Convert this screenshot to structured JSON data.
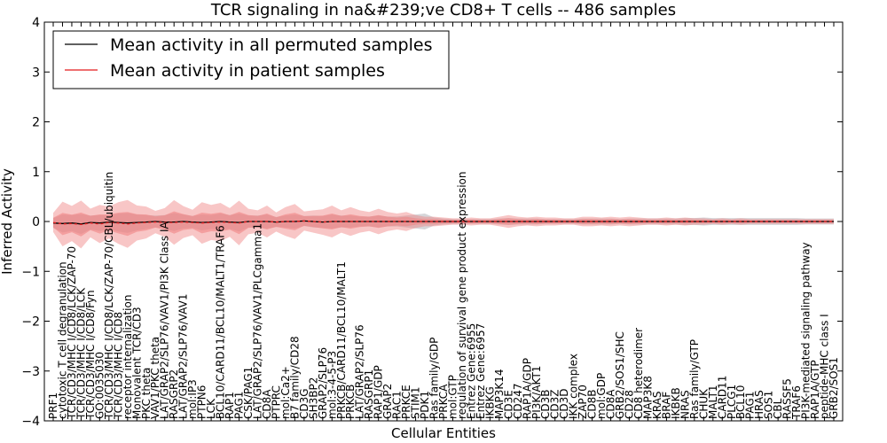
{
  "chart_data": {
    "type": "line",
    "title": "TCR signaling in na&#239;ve CD8+ T cells -- 486 samples",
    "xlabel": "Cellular Entities",
    "ylabel": "Inferred Activity",
    "ylim": [
      -4,
      4
    ],
    "yticks": [
      "4",
      "3",
      "2",
      "1",
      "0",
      "−1",
      "−2",
      "−3",
      "−4"
    ],
    "legend": {
      "placement": "top-left",
      "entries": [
        {
          "label": "Mean activity in all permuted samples",
          "color": "#000000"
        },
        {
          "label": "Mean activity in patient samples",
          "color": "#e41a1c"
        }
      ]
    },
    "colors": {
      "permuted_line": "#000000",
      "patient_line": "#e41a1c",
      "patient_band": "#f08080",
      "permuted_band": "#c8c8cc"
    },
    "categories": [
      "PRF1",
      "cytotoxic T cell degranulation",
      "TCR/CD3/MHC I/CD8/LCK/ZAP-70",
      "TCR/CD3/MHC I/CD8/LCK",
      "TCR/CD3/MHC I/CD8/Fyn",
      "GO:0035030",
      "TCR/CD3/MHC I/CD8/LCK/ZAP-70/CBL/ubiquitin",
      "TCR/CD3/MHC I/CD8",
      "receptor internalization",
      "Monovalent TCR/CD3",
      "PKC theta",
      "VAV1/PKC theta",
      "LAT/GRAP2/SLP76/VAV1/PI3K Class IA",
      "RASGRP2",
      "LAT/GRAP2/SLP76/VAV1",
      "mol:IP3",
      "PTPN6",
      "LCK",
      "BCL10/CARD11/BCL10/MALT1/TRAF6",
      "RAP1",
      "PAG1",
      "CSK/PAG1",
      "LAT/GRAP2/SLP76/VAV1/PLCgamma1",
      "CD8A",
      "PTPRC",
      "mol:Ca2+",
      "B7 family/CD28",
      "CD3G",
      "SH3BP2",
      "GRAP2/SLP76",
      "mol:3-4-5-P3",
      "PRKCB/CARD11/BCL10/MALT1",
      "PRKCB",
      "LAT/GRAP2/SLP76",
      "RASGRP1",
      "RAP1/GDP",
      "GRAP2",
      "RAC1",
      "PRKCE",
      "STIM1",
      "PDK1",
      "Ras family/GDP",
      "PRKCA",
      "mol:GTP",
      "regulation of survival gene product expression",
      "Entrez Gene:6955",
      "Entrez Gene:6957",
      "IKBKG",
      "MAP3K14",
      "CD3E",
      "CD247",
      "RAP1A/GDP",
      "PI3K/AKT1",
      "CD3B",
      "CD3Z",
      "CD3D",
      "IKK complex",
      "ZAP70",
      "CD8B",
      "mol:GDP",
      "CD8A",
      "GRB2/SOS1/SHC",
      "CD28",
      "CD8 heterodimer",
      "MAP3K8",
      "KRAS",
      "BRAF",
      "IKBKB",
      "NRAS",
      "Ras family/GTP",
      "CHUK",
      "MALT1",
      "CARD11",
      "PLCG1",
      "BCL10",
      "PAG1",
      "HRAS",
      "SOS1",
      "CBL",
      "RASSF5",
      "TRAF6",
      "PI3K-mediated signaling pathway",
      "RAP1A/GTP",
      "peptide-MHC class I",
      "GRB2/SOS1"
    ],
    "series": [
      {
        "name": "Mean activity in all permuted samples",
        "values": [
          -0.03,
          -0.04,
          -0.03,
          -0.05,
          -0.02,
          -0.03,
          -0.01,
          -0.02,
          -0.03,
          -0.02,
          -0.01,
          0.0,
          -0.01,
          -0.01,
          0.0,
          -0.01,
          -0.02,
          -0.01,
          0.0,
          -0.01,
          -0.02,
          0.0,
          0.0,
          0.0,
          -0.01,
          0.0,
          0.0,
          0.01,
          0.0,
          -0.01,
          0.0,
          0.0,
          0.0,
          0.0,
          0.0,
          0.0,
          0.0,
          0.0,
          0.0,
          0.0,
          0.0,
          0.0,
          0.0,
          0.0,
          0.0,
          0.0,
          0.0,
          0.0,
          0.0,
          0.0,
          0.0,
          0.0,
          0.0,
          0.0,
          0.0,
          0.0,
          0.0,
          0.0,
          0.0,
          0.0,
          0.0,
          0.0,
          0.0,
          0.0,
          0.0,
          0.0,
          0.0,
          0.0,
          0.0,
          0.0,
          0.0,
          0.0,
          0.0,
          0.0,
          0.0,
          0.0,
          0.0,
          0.0,
          0.0,
          0.0,
          0.0,
          0.0,
          0.0,
          0.0,
          0.0
        ]
      },
      {
        "name": "Mean activity in patient samples",
        "values": [
          -0.02,
          -0.05,
          -0.04,
          -0.06,
          -0.03,
          -0.05,
          -0.02,
          -0.03,
          -0.05,
          -0.03,
          -0.02,
          -0.01,
          -0.02,
          -0.02,
          -0.01,
          -0.02,
          -0.03,
          -0.02,
          -0.01,
          -0.02,
          -0.03,
          0.0,
          0.0,
          0.0,
          -0.01,
          0.0,
          0.0,
          0.01,
          0.0,
          -0.01,
          0.0,
          0.0,
          0.0,
          0.0,
          0.0,
          0.0,
          0.0,
          0.0,
          0.0,
          0.0,
          0.0,
          0.0,
          0.0,
          0.0,
          0.0,
          0.0,
          0.0,
          0.0,
          0.0,
          0.0,
          0.0,
          0.0,
          0.0,
          0.0,
          0.0,
          0.0,
          0.0,
          0.0,
          0.0,
          0.0,
          0.0,
          0.0,
          0.0,
          0.0,
          0.0,
          0.0,
          0.0,
          0.0,
          0.0,
          0.0,
          0.0,
          0.0,
          0.0,
          0.0,
          0.0,
          0.0,
          0.0,
          0.0,
          0.0,
          0.0,
          0.0,
          0.0,
          0.0,
          0.0,
          0.0
        ]
      }
    ],
    "patient_band_halfwidth": [
      0.12,
      0.28,
      0.22,
      0.3,
      0.18,
      0.24,
      0.2,
      0.26,
      0.3,
      0.22,
      0.2,
      0.14,
      0.18,
      0.28,
      0.2,
      0.16,
      0.26,
      0.22,
      0.24,
      0.18,
      0.28,
      0.16,
      0.14,
      0.2,
      0.12,
      0.18,
      0.22,
      0.12,
      0.14,
      0.16,
      0.2,
      0.14,
      0.18,
      0.14,
      0.12,
      0.16,
      0.12,
      0.1,
      0.12,
      0.08,
      0.06,
      0.06,
      0.05,
      0.04,
      0.04,
      0.05,
      0.04,
      0.04,
      0.06,
      0.08,
      0.06,
      0.05,
      0.06,
      0.05,
      0.05,
      0.04,
      0.04,
      0.06,
      0.06,
      0.05,
      0.06,
      0.05,
      0.06,
      0.05,
      0.04,
      0.04,
      0.05,
      0.04,
      0.05,
      0.04,
      0.04,
      0.03,
      0.04,
      0.03,
      0.04,
      0.03,
      0.03,
      0.03,
      0.03,
      0.03,
      0.03,
      0.03,
      0.03,
      0.03,
      0.03
    ],
    "permuted_band_halfwidth": [
      0.1,
      0.18,
      0.16,
      0.2,
      0.14,
      0.16,
      0.14,
      0.18,
      0.2,
      0.16,
      0.14,
      0.12,
      0.14,
      0.18,
      0.14,
      0.12,
      0.16,
      0.14,
      0.16,
      0.14,
      0.18,
      0.12,
      0.12,
      0.14,
      0.1,
      0.12,
      0.14,
      0.1,
      0.12,
      0.12,
      0.14,
      0.12,
      0.12,
      0.1,
      0.1,
      0.12,
      0.1,
      0.1,
      0.12,
      0.14,
      0.16,
      0.08,
      0.06,
      0.05,
      0.05,
      0.05,
      0.05,
      0.05,
      0.06,
      0.07,
      0.06,
      0.06,
      0.06,
      0.05,
      0.05,
      0.05,
      0.05,
      0.06,
      0.06,
      0.06,
      0.06,
      0.05,
      0.06,
      0.06,
      0.06,
      0.06,
      0.06,
      0.06,
      0.07,
      0.07,
      0.08,
      0.07,
      0.07,
      0.07,
      0.07,
      0.07,
      0.07,
      0.07,
      0.07,
      0.07,
      0.07,
      0.06,
      0.06,
      0.06,
      0.06
    ]
  }
}
